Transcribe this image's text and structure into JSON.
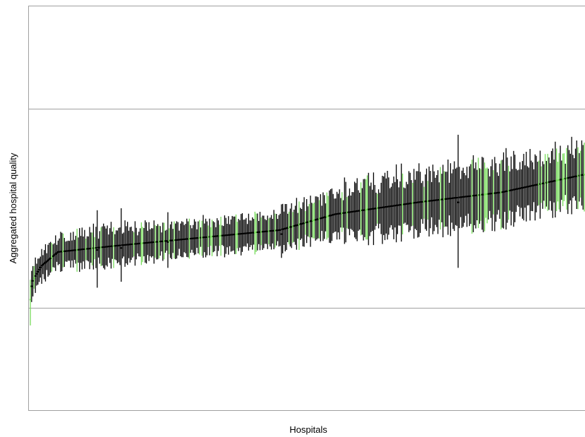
{
  "chart_data": {
    "type": "errorbar",
    "title": "",
    "xlabel": "Hospitals",
    "ylabel": "Aggregated hospital quality",
    "x_tick_labels": [],
    "y_tick_labels": [],
    "grid": false,
    "reference_lines": [
      {
        "y": 0.0
      },
      {
        "y": 1.0
      }
    ],
    "ylim": [
      -0.52,
      1.52
    ],
    "n_hospitals": 440,
    "colors": {
      "default_bar": "#000000",
      "highlight_bar": "#76dc5a",
      "frame": "#a0a0a0",
      "reference_line": "#a0a0a0"
    },
    "estimate_profile": [
      {
        "rank_fraction": 0.0,
        "estimate": 0.08
      },
      {
        "rank_fraction": 0.005,
        "estimate": 0.14
      },
      {
        "rank_fraction": 0.02,
        "estimate": 0.21
      },
      {
        "rank_fraction": 0.05,
        "estimate": 0.28
      },
      {
        "rank_fraction": 0.15,
        "estimate": 0.31
      },
      {
        "rank_fraction": 0.3,
        "estimate": 0.35
      },
      {
        "rank_fraction": 0.45,
        "estimate": 0.39
      },
      {
        "rank_fraction": 0.55,
        "estimate": 0.47
      },
      {
        "rank_fraction": 0.7,
        "estimate": 0.53
      },
      {
        "rank_fraction": 0.85,
        "estimate": 0.58
      },
      {
        "rank_fraction": 1.0,
        "estimate": 0.67
      }
    ],
    "interval_halfwidth_profile": [
      {
        "rank_fraction": 0.0,
        "halfwidth": 0.07
      },
      {
        "rank_fraction": 0.1,
        "halfwidth": 0.09
      },
      {
        "rank_fraction": 0.3,
        "halfwidth": 0.08
      },
      {
        "rank_fraction": 0.5,
        "halfwidth": 0.1
      },
      {
        "rank_fraction": 0.6,
        "halfwidth": 0.14
      },
      {
        "rank_fraction": 0.8,
        "halfwidth": 0.15
      },
      {
        "rank_fraction": 1.0,
        "halfwidth": 0.15
      }
    ],
    "notable_intervals": [
      {
        "rank": 0,
        "estimate": 0.04,
        "lower": -0.09,
        "upper": 0.14
      },
      {
        "rank": 53,
        "estimate": 0.29,
        "lower": 0.1,
        "upper": 0.49
      },
      {
        "rank": 72,
        "estimate": 0.3,
        "lower": 0.13,
        "upper": 0.5
      },
      {
        "rank": 109,
        "estimate": 0.33,
        "lower": 0.2,
        "upper": 0.48
      },
      {
        "rank": 199,
        "estimate": 0.37,
        "lower": 0.25,
        "upper": 0.52
      },
      {
        "rank": 339,
        "estimate": 0.53,
        "lower": 0.2,
        "upper": 0.87
      }
    ],
    "highlight_share": 0.15
  }
}
